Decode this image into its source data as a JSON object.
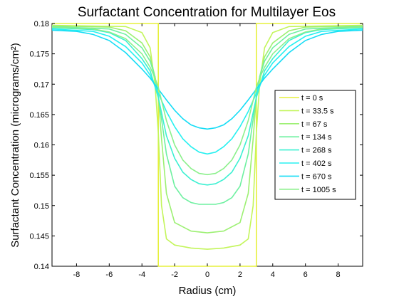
{
  "chart_data": {
    "type": "line",
    "title": "Surfactant Concentration for Multilayer Eos",
    "xlabel": "Radius (cm)",
    "ylabel": "Surfactant Concentration (micrograms/cm²)",
    "xlim": [
      -9.5,
      9.5
    ],
    "ylim": [
      0.14,
      0.18
    ],
    "xticks": [
      -8,
      -6,
      -4,
      -2,
      0,
      2,
      4,
      6,
      8
    ],
    "yticks": [
      0.14,
      0.145,
      0.15,
      0.155,
      0.16,
      0.165,
      0.17,
      0.175,
      0.18
    ],
    "ytick_labels": [
      "0.14",
      "0.145",
      "0.15",
      "0.155",
      "0.16",
      "0.165",
      "0.17",
      "0.175",
      "0.18"
    ],
    "grid": false,
    "legend_position": "right",
    "series": [
      {
        "name": "t = 0 s",
        "color": "#e6f03c",
        "x": [
          -9.5,
          -3,
          -3,
          3,
          3,
          9.5
        ],
        "y": [
          0.18,
          0.18,
          0.14,
          0.14,
          0.18,
          0.18
        ]
      },
      {
        "name": "t = 33.5 s",
        "color": "#c3f55a",
        "x": [
          -9.5,
          -5,
          -4,
          -3.5,
          -3.2,
          -3,
          -2.8,
          -2.5,
          -2,
          -1,
          0,
          1,
          2,
          2.5,
          2.8,
          3,
          3.2,
          3.5,
          4,
          5,
          9.5
        ],
        "y": [
          0.1797,
          0.1795,
          0.1785,
          0.176,
          0.17,
          0.162,
          0.15,
          0.1445,
          0.1435,
          0.143,
          0.1428,
          0.143,
          0.1435,
          0.1445,
          0.15,
          0.162,
          0.17,
          0.176,
          0.1785,
          0.1795,
          0.1797
        ]
      },
      {
        "name": "t = 67 s",
        "color": "#9df073",
        "x": [
          -9.5,
          -6,
          -5,
          -4,
          -3.5,
          -3.2,
          -3,
          -2.8,
          -2.5,
          -2,
          -1,
          0,
          1,
          2,
          2.5,
          2.8,
          3,
          3.2,
          3.5,
          4,
          5,
          6,
          9.5
        ],
        "y": [
          0.1796,
          0.1794,
          0.1788,
          0.1768,
          0.1745,
          0.1712,
          0.168,
          0.161,
          0.152,
          0.1472,
          0.1458,
          0.1455,
          0.1458,
          0.1472,
          0.152,
          0.161,
          0.168,
          0.1712,
          0.1745,
          0.1768,
          0.1788,
          0.1794,
          0.1796
        ]
      },
      {
        "name": "t = 134 s",
        "color": "#6ef0a0",
        "x": [
          -9.5,
          -6,
          -5,
          -4,
          -3.5,
          -3.2,
          -3,
          -2.5,
          -2,
          -1.5,
          -1,
          -0.5,
          0,
          0.5,
          1,
          1.5,
          2,
          2.5,
          3,
          3.2,
          3.5,
          4,
          5,
          6,
          9.5
        ],
        "y": [
          0.1795,
          0.1791,
          0.1782,
          0.176,
          0.1738,
          0.1712,
          0.168,
          0.1585,
          0.1532,
          0.1513,
          0.1505,
          0.1502,
          0.1502,
          0.1502,
          0.1505,
          0.1513,
          0.1532,
          0.1585,
          0.168,
          0.1712,
          0.1738,
          0.176,
          0.1782,
          0.1791,
          0.1795
        ]
      },
      {
        "name": "t = 268 s",
        "color": "#3cf0d2",
        "x": [
          -9.5,
          -7,
          -6,
          -5,
          -4,
          -3.5,
          -3,
          -2.5,
          -2,
          -1.5,
          -1,
          -0.5,
          0,
          0.5,
          1,
          1.5,
          2,
          2.5,
          3,
          3.5,
          4,
          5,
          6,
          7,
          9.5
        ],
        "y": [
          0.1793,
          0.179,
          0.1785,
          0.1772,
          0.1742,
          0.1722,
          0.1678,
          0.1615,
          0.1578,
          0.1555,
          0.1543,
          0.1536,
          0.1534,
          0.1536,
          0.1543,
          0.1555,
          0.1578,
          0.1615,
          0.1678,
          0.1722,
          0.1742,
          0.1772,
          0.1785,
          0.179,
          0.1793
        ]
      },
      {
        "name": "t = 402 s",
        "color": "#28f0f0",
        "x": [
          -9.5,
          -7,
          -6,
          -5,
          -4,
          -3.5,
          -3,
          -2.5,
          -2,
          -1.5,
          -1,
          -0.5,
          0,
          0.5,
          1,
          1.5,
          2,
          2.5,
          3,
          3.5,
          4,
          5,
          6,
          7,
          9.5
        ],
        "y": [
          0.1791,
          0.1787,
          0.1779,
          0.1762,
          0.1735,
          0.1715,
          0.1685,
          0.1655,
          0.163,
          0.161,
          0.1597,
          0.1588,
          0.1585,
          0.1588,
          0.1597,
          0.161,
          0.163,
          0.1655,
          0.1685,
          0.1715,
          0.1735,
          0.1762,
          0.1779,
          0.1787,
          0.1791
        ]
      },
      {
        "name": "t = 670 s",
        "color": "#14dcf5",
        "x": [
          -9.5,
          -8,
          -7,
          -6,
          -5,
          -4,
          -3.5,
          -3,
          -2.5,
          -2,
          -1.5,
          -1,
          -0.5,
          0,
          0.5,
          1,
          1.5,
          2,
          2.5,
          3,
          3.5,
          4,
          5,
          6,
          7,
          8,
          9.5
        ],
        "y": [
          0.1789,
          0.1787,
          0.1782,
          0.1772,
          0.1752,
          0.1725,
          0.171,
          0.1692,
          0.1674,
          0.1657,
          0.1643,
          0.1633,
          0.1628,
          0.1626,
          0.1628,
          0.1633,
          0.1643,
          0.1657,
          0.1674,
          0.1692,
          0.171,
          0.1725,
          0.1752,
          0.1772,
          0.1782,
          0.1787,
          0.1789
        ]
      },
      {
        "name": "t = 1005 s",
        "color": "#8cf08c",
        "x": [
          -9.5,
          -7,
          -6,
          -5,
          -4,
          -3.5,
          -3.2,
          -3,
          -2.5,
          -2,
          -1.5,
          -1,
          -0.5,
          0,
          0.5,
          1,
          1.5,
          2,
          2.5,
          3,
          3.2,
          3.5,
          4,
          5,
          6,
          7,
          9.5
        ],
        "y": [
          0.1794,
          0.1791,
          0.1786,
          0.1775,
          0.175,
          0.1728,
          0.171,
          0.1695,
          0.164,
          0.16,
          0.1575,
          0.1561,
          0.1553,
          0.1551,
          0.1553,
          0.1561,
          0.1575,
          0.16,
          0.164,
          0.1695,
          0.171,
          0.1728,
          0.175,
          0.1775,
          0.1786,
          0.1791,
          0.1794
        ]
      }
    ]
  }
}
